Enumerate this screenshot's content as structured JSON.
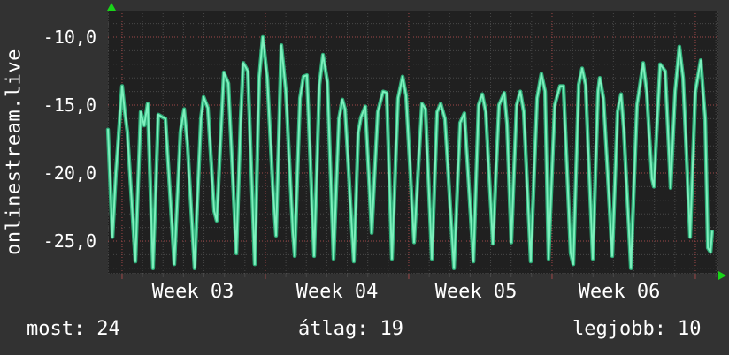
{
  "title_vertical": "onlinestream.live",
  "stats": [
    {
      "label": "most:",
      "value": "24"
    },
    {
      "label": "átlag:",
      "value": "19"
    },
    {
      "label": "legjobb:",
      "value": "10"
    }
  ],
  "chart_data": {
    "type": "line",
    "title": "onlinestream.live",
    "xlabel": "",
    "ylabel": "",
    "x_unit": "days",
    "x_span_days": 29.8,
    "ylim": [
      -27.4,
      -8.1
    ],
    "grid": "dotted",
    "legend_position": "none",
    "y_ticks": [
      {
        "label": "-10,0",
        "value": -10
      },
      {
        "label": "-15,0",
        "value": -15
      },
      {
        "label": "-20,0",
        "value": -20
      },
      {
        "label": "-25,0",
        "value": -25
      }
    ],
    "x_ticks": [
      "Week 03",
      "Week 04",
      "Week 05",
      "Week 06"
    ],
    "week_line_days": [
      0.69,
      7.69,
      14.69,
      21.69,
      28.69
    ],
    "colors": {
      "background": "#323232",
      "plot_background": "#202020",
      "grid_minor": "#474747",
      "grid_major": "#9e4848",
      "line_outer": "#2fae79",
      "line_inner": "#7df0bd",
      "arrow": "#19d419",
      "text": "#ffffff"
    },
    "series": [
      {
        "name": "onlinestream.live",
        "points": [
          [
            0,
            -16.8
          ],
          [
            0.22,
            -24.7
          ],
          [
            0.39,
            -20
          ],
          [
            0.69,
            -13.6
          ],
          [
            0.82,
            -15.5
          ],
          [
            0.95,
            -17
          ],
          [
            1.34,
            -26.5
          ],
          [
            1.6,
            -15.5
          ],
          [
            1.77,
            -16.5
          ],
          [
            1.94,
            -14.9
          ],
          [
            2.2,
            -27
          ],
          [
            2.46,
            -15.7
          ],
          [
            2.68,
            -15.9
          ],
          [
            2.81,
            -16
          ],
          [
            3.24,
            -26.7
          ],
          [
            3.54,
            -17
          ],
          [
            3.72,
            -15.3
          ],
          [
            3.89,
            -18
          ],
          [
            4.23,
            -27
          ],
          [
            4.54,
            -16
          ],
          [
            4.67,
            -14.4
          ],
          [
            4.88,
            -15.2
          ],
          [
            5.19,
            -22.8
          ],
          [
            5.31,
            -23.5
          ],
          [
            5.66,
            -12.6
          ],
          [
            5.88,
            -13.4
          ],
          [
            6.27,
            -25.9
          ],
          [
            6.48,
            -16
          ],
          [
            6.61,
            -11.9
          ],
          [
            6.83,
            -12.5
          ],
          [
            7.17,
            -26.7
          ],
          [
            7.39,
            -13
          ],
          [
            7.56,
            -10
          ],
          [
            7.78,
            -13
          ],
          [
            8.04,
            -20.7
          ],
          [
            8.21,
            -24.6
          ],
          [
            8.47,
            -10.6
          ],
          [
            8.69,
            -14
          ],
          [
            9.03,
            -24.3
          ],
          [
            9.12,
            -26.1
          ],
          [
            9.38,
            -14.5
          ],
          [
            9.55,
            -12.9
          ],
          [
            9.72,
            -12.8
          ],
          [
            10.07,
            -26.1
          ],
          [
            10.33,
            -13.5
          ],
          [
            10.5,
            -11.3
          ],
          [
            10.72,
            -13.3
          ],
          [
            11.02,
            -26.3
          ],
          [
            11.28,
            -16
          ],
          [
            11.45,
            -14.6
          ],
          [
            11.58,
            -15.3
          ],
          [
            12.01,
            -26.5
          ],
          [
            12.23,
            -17
          ],
          [
            12.36,
            -15.9
          ],
          [
            12.57,
            -15.1
          ],
          [
            12.88,
            -24.4
          ],
          [
            13.18,
            -15.5
          ],
          [
            13.44,
            -14
          ],
          [
            13.61,
            -14.1
          ],
          [
            13.87,
            -26.3
          ],
          [
            14.17,
            -14.5
          ],
          [
            14.39,
            -12.9
          ],
          [
            14.56,
            -14.3
          ],
          [
            14.95,
            -25.1
          ],
          [
            15.34,
            -14.9
          ],
          [
            15.51,
            -15.3
          ],
          [
            15.82,
            -26.3
          ],
          [
            16.08,
            -15.5
          ],
          [
            16.25,
            -14.9
          ],
          [
            16.46,
            -16
          ],
          [
            16.9,
            -27
          ],
          [
            17.2,
            -16.3
          ],
          [
            17.41,
            -15.6
          ],
          [
            17.85,
            -26.5
          ],
          [
            18.1,
            -15
          ],
          [
            18.28,
            -14.2
          ],
          [
            18.45,
            -15.5
          ],
          [
            18.8,
            -25.2
          ],
          [
            19.1,
            -15
          ],
          [
            19.36,
            -14.1
          ],
          [
            19.49,
            -16.4
          ],
          [
            19.7,
            -25.1
          ],
          [
            19.96,
            -15
          ],
          [
            20.14,
            -14
          ],
          [
            20.31,
            -15.5
          ],
          [
            20.65,
            -26.5
          ],
          [
            20.96,
            -14.5
          ],
          [
            21.17,
            -12.7
          ],
          [
            21.35,
            -14
          ],
          [
            21.52,
            -26.3
          ],
          [
            21.82,
            -15
          ],
          [
            22.08,
            -13.6
          ],
          [
            22.25,
            -13.6
          ],
          [
            22.6,
            -25.9
          ],
          [
            22.73,
            -26.7
          ],
          [
            22.99,
            -13.5
          ],
          [
            23.16,
            -12.3
          ],
          [
            23.33,
            -13.5
          ],
          [
            23.68,
            -26.3
          ],
          [
            23.94,
            -14
          ],
          [
            24.02,
            -13
          ],
          [
            24.2,
            -14.5
          ],
          [
            24.63,
            -26.1
          ],
          [
            24.89,
            -15.5
          ],
          [
            25.06,
            -14.2
          ],
          [
            25.19,
            -16.7
          ],
          [
            25.54,
            -27
          ],
          [
            25.84,
            -15
          ],
          [
            26.14,
            -11.9
          ],
          [
            26.31,
            -14
          ],
          [
            26.57,
            -20.4
          ],
          [
            26.66,
            -21
          ],
          [
            26.97,
            -12
          ],
          [
            27.22,
            -12.5
          ],
          [
            27.48,
            -21.1
          ],
          [
            27.7,
            -14
          ],
          [
            27.91,
            -10.7
          ],
          [
            28.09,
            -13
          ],
          [
            28.43,
            -24.7
          ],
          [
            28.69,
            -14
          ],
          [
            28.95,
            -11.7
          ],
          [
            29.17,
            -16
          ],
          [
            29.3,
            -25.5
          ],
          [
            29.43,
            -25.8
          ],
          [
            29.51,
            -24.3
          ]
        ]
      }
    ]
  }
}
